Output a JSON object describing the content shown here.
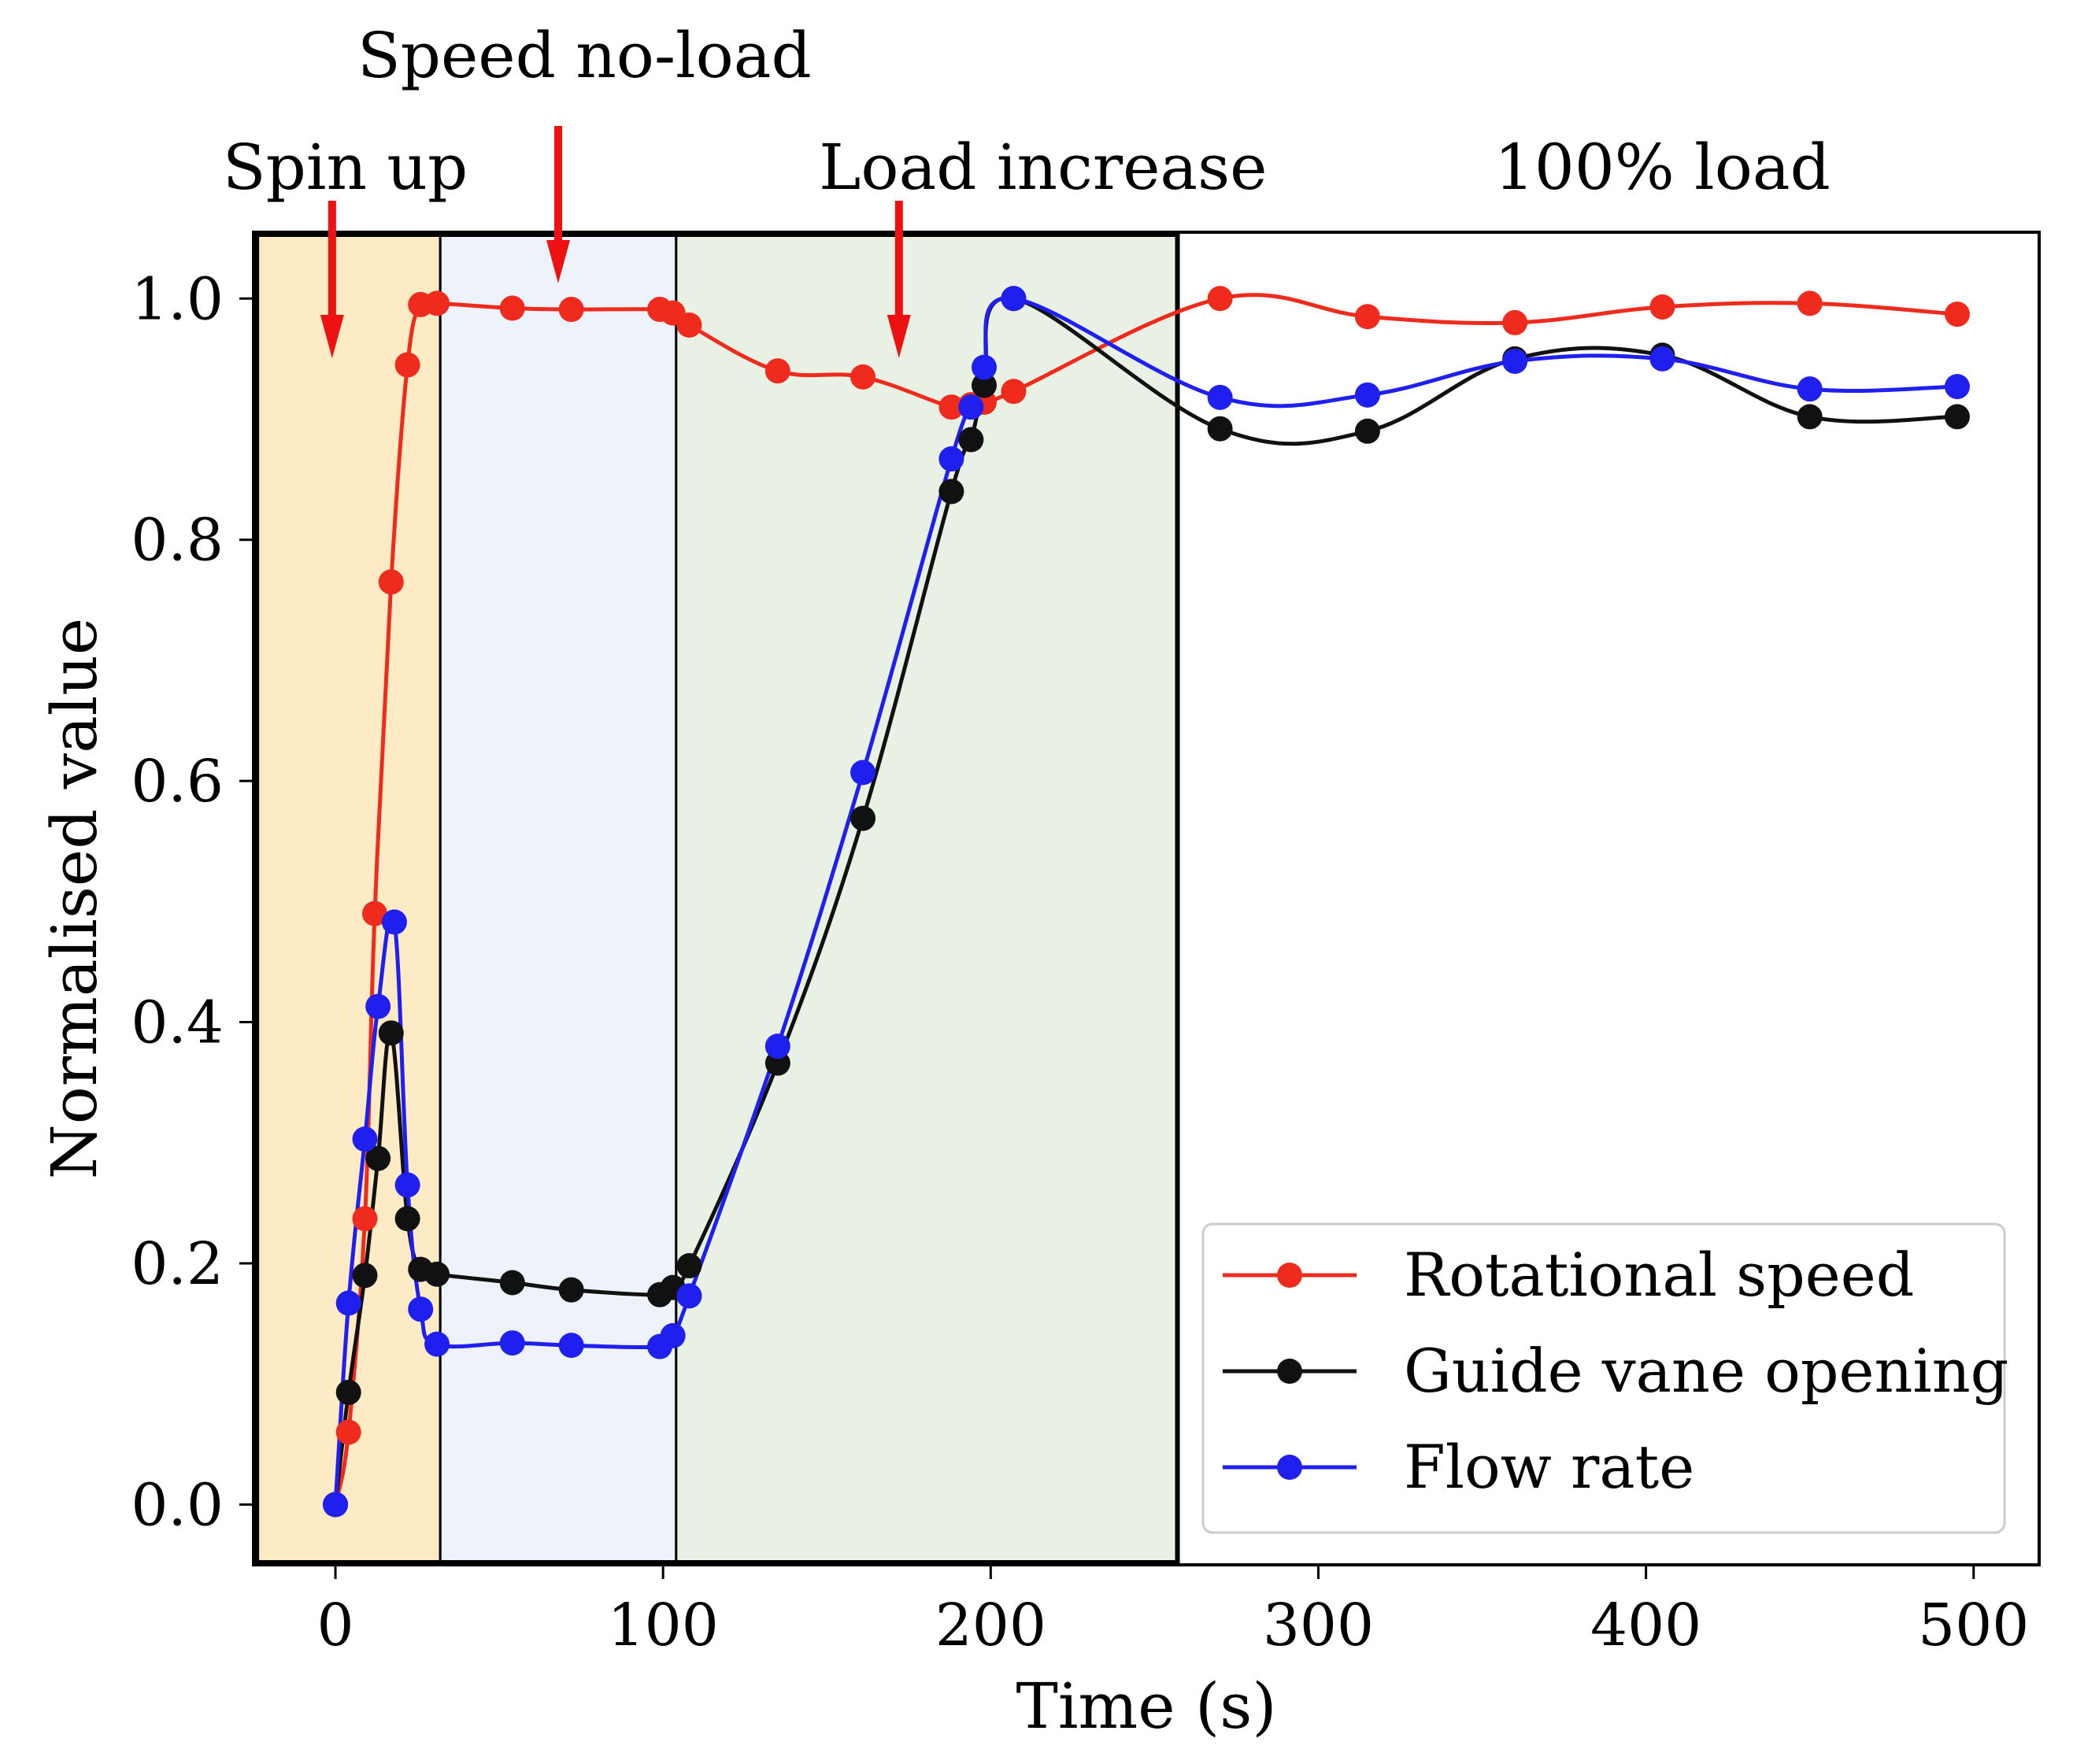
{
  "chart_data": {
    "type": "line",
    "title": "",
    "xlabel": "Time (s)",
    "ylabel": "Normalised value",
    "xlim": [
      -25,
      520
    ],
    "ylim": [
      -0.05,
      1.055
    ],
    "xticks": [
      0,
      100,
      200,
      300,
      400,
      500
    ],
    "xtick_labels": [
      "0",
      "100",
      "200",
      "300",
      "400",
      "500"
    ],
    "yticks": [
      0.0,
      0.2,
      0.4,
      0.6,
      0.8,
      1.0
    ],
    "ytick_labels": [
      "0.0",
      "0.2",
      "0.4",
      "0.6",
      "0.8",
      "1.0"
    ],
    "grid": false,
    "legend_position": "lower-right",
    "phases": [
      {
        "name": "spin-up",
        "label": "Spin up",
        "x_start": -24,
        "x_end": 32,
        "color": "#fcebc4",
        "arrow_x": -1,
        "label_x": 3
      },
      {
        "name": "speed-no-load",
        "label": "Speed no-load",
        "x_start": 32,
        "x_end": 104,
        "color": "#eef3fb",
        "arrow_x": 68,
        "label_x": 76
      },
      {
        "name": "load-increase",
        "label": "Load increase",
        "x_start": 104,
        "x_end": 257,
        "color": "#e8f1e3",
        "arrow_x": 172,
        "label_x": 216
      },
      {
        "name": "full-load",
        "label": "100% load",
        "x_start": null,
        "x_end": null,
        "color": "#ffffff",
        "arrow_x": null,
        "label_x": 405
      }
    ],
    "series": [
      {
        "name": "Rotational speed",
        "color": "#ef2b1e",
        "points": [
          [
            0,
            0.0
          ],
          [
            4,
            0.06
          ],
          [
            9,
            0.237
          ],
          [
            12,
            0.49
          ],
          [
            17,
            0.765
          ],
          [
            22,
            0.945
          ],
          [
            26,
            0.995
          ],
          [
            31,
            0.996
          ],
          [
            54,
            0.992
          ],
          [
            72,
            0.991
          ],
          [
            99,
            0.991
          ],
          [
            103,
            0.988
          ],
          [
            108,
            0.978
          ],
          [
            135,
            0.94
          ],
          [
            161,
            0.935
          ],
          [
            188,
            0.91
          ],
          [
            194,
            0.912
          ],
          [
            198,
            0.914
          ],
          [
            207,
            0.923
          ],
          [
            270,
            1.0
          ],
          [
            315,
            0.985
          ],
          [
            360,
            0.98
          ],
          [
            405,
            0.993
          ],
          [
            450,
            0.996
          ],
          [
            495,
            0.987
          ]
        ]
      },
      {
        "name": "Guide vane opening",
        "color": "#111111",
        "points": [
          [
            0,
            0.0
          ],
          [
            4,
            0.093
          ],
          [
            9,
            0.19
          ],
          [
            13,
            0.287
          ],
          [
            17,
            0.391
          ],
          [
            22,
            0.237
          ],
          [
            26,
            0.195
          ],
          [
            31,
            0.191
          ],
          [
            54,
            0.184
          ],
          [
            72,
            0.178
          ],
          [
            99,
            0.174
          ],
          [
            103,
            0.18
          ],
          [
            108,
            0.198
          ],
          [
            135,
            0.366
          ],
          [
            161,
            0.569
          ],
          [
            188,
            0.84
          ],
          [
            194,
            0.883
          ],
          [
            198,
            0.928
          ],
          [
            207,
            1.0
          ],
          [
            270,
            0.892
          ],
          [
            315,
            0.89
          ],
          [
            360,
            0.95
          ],
          [
            405,
            0.953
          ],
          [
            450,
            0.902
          ],
          [
            495,
            0.902
          ]
        ]
      },
      {
        "name": "Flow rate",
        "color": "#1f1ff0",
        "points": [
          [
            0,
            0.0
          ],
          [
            4,
            0.167
          ],
          [
            9,
            0.303
          ],
          [
            13,
            0.413
          ],
          [
            18,
            0.483
          ],
          [
            22,
            0.265
          ],
          [
            26,
            0.162
          ],
          [
            31,
            0.133
          ],
          [
            54,
            0.134
          ],
          [
            72,
            0.132
          ],
          [
            99,
            0.131
          ],
          [
            103,
            0.14
          ],
          [
            108,
            0.173
          ],
          [
            135,
            0.38
          ],
          [
            161,
            0.607
          ],
          [
            188,
            0.867
          ],
          [
            194,
            0.91
          ],
          [
            198,
            0.943
          ],
          [
            207,
            1.0
          ],
          [
            270,
            0.918
          ],
          [
            315,
            0.92
          ],
          [
            360,
            0.948
          ],
          [
            405,
            0.95
          ],
          [
            450,
            0.925
          ],
          [
            495,
            0.927
          ]
        ]
      }
    ]
  }
}
